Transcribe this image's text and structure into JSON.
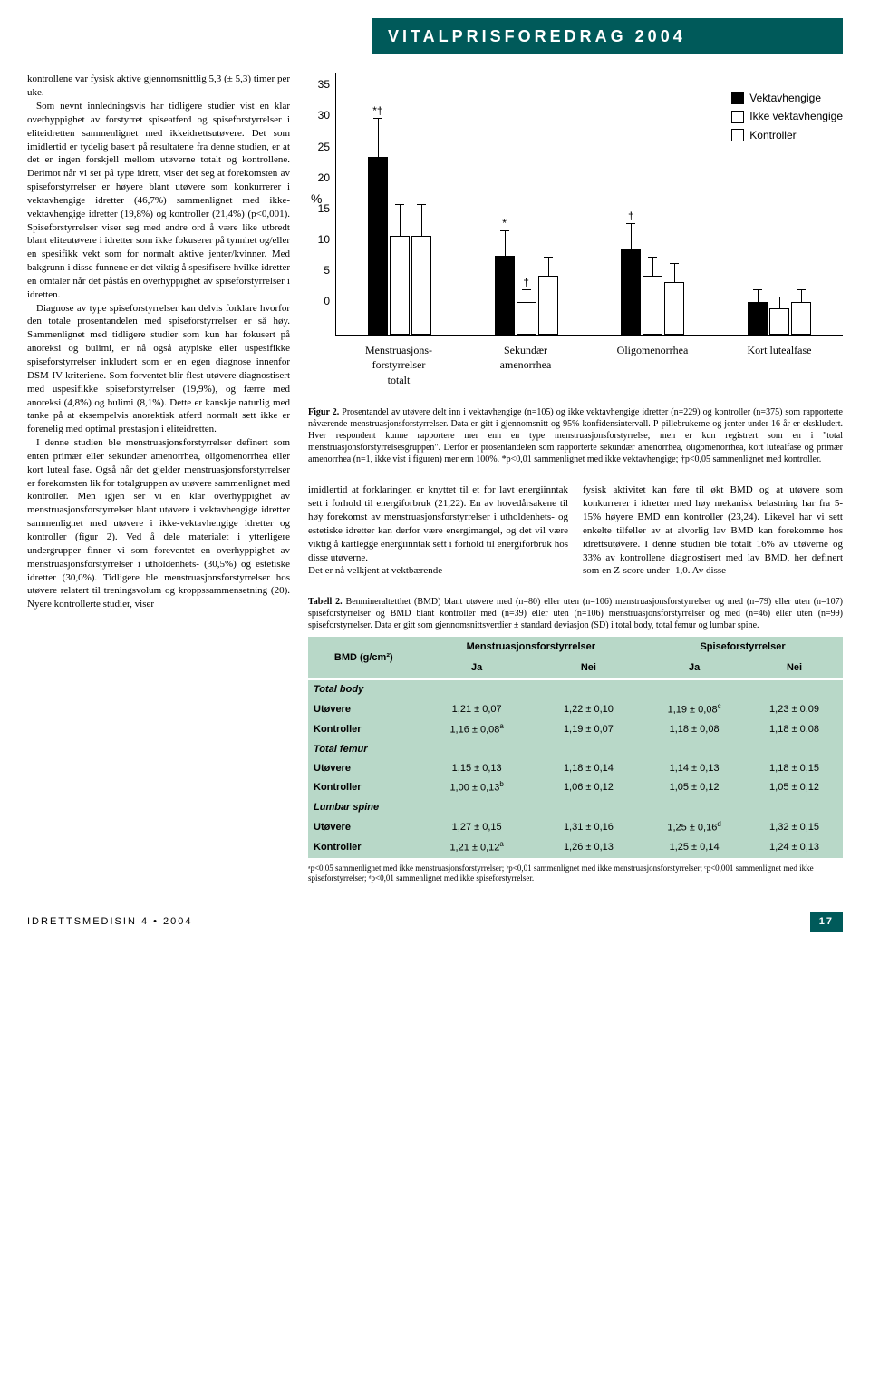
{
  "header": "VITALPRISFOREDRAG 2004",
  "left_column": {
    "p1": "kontrollene var fysisk aktive gjennomsnittlig 5,3 (± 5,3) timer per uke.",
    "p2": "Som nevnt innledningsvis har tidligere studier vist en klar overhyppighet av forstyrret spiseatferd og spiseforstyrrelser i eliteidretten sammenlignet med ikkeidrettsutøvere. Det som imidlertid er tydelig basert på resultatene fra denne studien, er at det er ingen forskjell mellom utøverne totalt og kontrollene. Derimot når vi ser på type idrett, viser det seg at forekomsten av spiseforstyrrelser er høyere blant utøvere som konkurrerer i vektavhengige idretter (46,7%) sammenlignet med ikke-vektavhengige idretter (19,8%) og kontroller (21,4%) (p<0,001). Spiseforstyrrelser viser seg med andre ord å være like utbredt blant eliteutøvere i idretter som ikke fokuserer på tynnhet og/eller en spesifikk vekt som for normalt aktive jenter/kvinner. Med bakgrunn i disse funnene er det viktig å spesifisere hvilke idretter en omtaler når det påstås en overhyppighet av spiseforstyrrelser i idretten.",
    "p3": "Diagnose av type spiseforstyrrelser kan delvis forklare hvorfor den totale prosentandelen med spiseforstyrrelser er så høy. Sammenlignet med tidligere studier som kun har fokusert på anoreksi og bulimi, er nå også atypiske eller uspesifikke spiseforstyrrelser inkludert som er en egen diagnose innenfor DSM-IV kriteriene. Som forventet blir flest utøvere diagnostisert med uspesifikke spiseforstyrrelser (19,9%), og færre med anoreksi (4,8%) og bulimi (8,1%). Dette er kanskje naturlig med tanke på at eksempelvis anorektisk atferd normalt sett ikke er forenelig med optimal prestasjon i eliteidretten.",
    "p4": "I denne studien ble menstruasjonsforstyrrelser definert som enten primær eller sekundær amenorrhea, oligomenorrhea eller kort luteal fase. Også når det gjelder menstruasjonsforstyrrelser er forekomsten lik for totalgruppen av utøvere sammenlignet med kontroller. Men igjen ser vi en klar overhyppighet av menstruasjonsforstyrrelser blant utøvere i vektavhengige idretter sammenlignet med utøvere i ikke-vektavhengige idretter og kontroller (figur 2). Ved å dele materialet i ytterligere undergrupper finner vi som foreventet en overhyppighet av menstruasjonsforstyrrelser i utholdenhets- (30,5%) og estetiske idretter (30,0%). Tidligere ble menstruasjonsforstyrrelser hos utøvere relatert til treningsvolum og kroppssammensetning (20). Nyere kontrollerte studier, viser"
  },
  "chart": {
    "type": "bar",
    "y_axis_label": "%",
    "ymax": 35,
    "ytick_step": 5,
    "yticks": [
      "35",
      "30",
      "25",
      "20",
      "15",
      "10",
      "5",
      "0"
    ],
    "categories": [
      "Menstruasjons-\nforstyrrelser\ntotalt",
      "Sekundær\namenorrhea",
      "Oligomenorrhea",
      "Kort lutealfase"
    ],
    "series": [
      {
        "name": "Vektavhengige",
        "color": "#000000"
      },
      {
        "name": "Ikke vektavhengige",
        "color": "#ffffff"
      },
      {
        "name": "Kontroller",
        "color": "#ffffff"
      }
    ],
    "groups": [
      {
        "cat": "Menstruasjons-forstyrrelser totalt",
        "bars": [
          {
            "v": 27,
            "err": 6,
            "sig": "*†",
            "c": "#000"
          },
          {
            "v": 15,
            "err": 5,
            "sig": "",
            "c": "#fff"
          },
          {
            "v": 15,
            "err": 5,
            "sig": "",
            "c": "#fff"
          }
        ]
      },
      {
        "cat": "Sekundær amenorrhea",
        "bars": [
          {
            "v": 12,
            "err": 4,
            "sig": "*",
            "c": "#000"
          },
          {
            "v": 5,
            "err": 2,
            "sig": "†",
            "c": "#fff"
          },
          {
            "v": 9,
            "err": 3,
            "sig": "",
            "c": "#fff"
          }
        ]
      },
      {
        "cat": "Oligomenorrhea",
        "bars": [
          {
            "v": 13,
            "err": 4,
            "sig": "†",
            "c": "#000"
          },
          {
            "v": 9,
            "err": 3,
            "sig": "",
            "c": "#fff"
          },
          {
            "v": 8,
            "err": 3,
            "sig": "",
            "c": "#fff"
          }
        ]
      },
      {
        "cat": "Kort lutealfase",
        "bars": [
          {
            "v": 5,
            "err": 2,
            "sig": "",
            "c": "#000"
          },
          {
            "v": 4,
            "err": 2,
            "sig": "",
            "c": "#fff"
          },
          {
            "v": 5,
            "err": 2,
            "sig": "",
            "c": "#fff"
          }
        ]
      }
    ]
  },
  "fig2_caption_label": "Figur 2.",
  "fig2_caption": " Prosentandel av utøvere delt inn i vektavhengige (n=105) og ikke vektavhengige idretter (n=229) og kontroller (n=375) som rapporterte nåværende menstruasjonsforstyrrelser. Data er gitt i gjennomsnitt og 95% konfidensintervall. P-pillebrukerne og jenter under 16 år er ekskludert. Hver respondent kunne rapportere mer enn en type menstruasjonsforstyrrelse, men er kun registrert som en i \"total menstruasjonsforstyrrelsesgruppen\". Derfor er prosentandelen som rapporterte sekundær amenorrhea, oligomenorrhea, kort lutealfase og primær amenorrhea (n=1, ikke vist i figuren) mer enn 100%. *p<0,01 sammenlignet med ikke vektavhengige; †p<0,05 sammenlignet med kontroller.",
  "body_right": {
    "col1": "imidlertid at forklaringen er knyttet til et for lavt energiinntak sett i forhold til energiforbruk (21,22). En av hovedårsakene til høy forekomst av menstruasjonsforstyrrelser i utholdenhets- og estetiske idretter kan derfor være energimangel, og det vil være viktig å kartlegge energiinntak sett i forhold til energiforbruk hos disse utøverne.\n   Det er nå velkjent at vektbærende",
    "col2": "fysisk aktivitet kan føre til økt BMD og at utøvere som konkurrerer i idretter med høy mekanisk belastning har fra 5-15% høyere BMD enn kontroller (23,24). Likevel har vi sett enkelte tilfeller av at alvorlig lav BMD kan forekomme hos idrettsutøvere. I denne studien ble totalt 16% av utøverne og 33% av kontrollene diagnostisert med lav BMD, her definert som en Z-score under -1,0. Av disse"
  },
  "table2_caption_label": "Tabell 2.",
  "table2_caption": " Benmineraltetthet (BMD) blant utøvere med (n=80) eller uten (n=106) menstruasjonsforstyrrelser og med (n=79) eller uten (n=107) spiseforstyrrelser og BMD blant kontroller med (n=39) eller uten (n=106) menstruasjonsforstyrrelser og med (n=46) eller uten (n=99) spiseforstyrrelser. Data er gitt som gjennomsnittsverdier ± standard deviasjon (SD) i total body, total femur og lumbar spine.",
  "table2": {
    "col_header_unit": "BMD (g/cm²)",
    "major_cols": [
      "Menstruasjonsforstyrrelser",
      "Spiseforstyrrelser"
    ],
    "sub_cols": [
      "Ja",
      "Nei",
      "Ja",
      "Nei"
    ],
    "sections": [
      {
        "label": "Total body",
        "rows": [
          {
            "name": "Utøvere",
            "vals": [
              "1,21 ± 0,07",
              "1,22 ± 0,10",
              "1,19 ± 0,08",
              "1,23 ± 0,09"
            ],
            "sup": [
              "",
              "",
              "c",
              ""
            ]
          },
          {
            "name": "Kontroller",
            "vals": [
              "1,16 ± 0,08",
              "1,19 ± 0,07",
              "1,18 ± 0,08",
              "1,18 ± 0,08"
            ],
            "sup": [
              "a",
              "",
              "",
              ""
            ]
          }
        ]
      },
      {
        "label": "Total femur",
        "rows": [
          {
            "name": "Utøvere",
            "vals": [
              "1,15 ± 0,13",
              "1,18 ± 0,14",
              "1,14 ± 0,13",
              "1,18 ± 0,15"
            ],
            "sup": [
              "",
              "",
              "",
              ""
            ]
          },
          {
            "name": "Kontroller",
            "vals": [
              "1,00 ± 0,13",
              "1,06 ± 0,12",
              "1,05 ± 0,12",
              "1,05 ± 0,12"
            ],
            "sup": [
              "b",
              "",
              "",
              ""
            ]
          }
        ]
      },
      {
        "label": "Lumbar spine",
        "rows": [
          {
            "name": "Utøvere",
            "vals": [
              "1,27 ± 0,15",
              "1,31 ± 0,16",
              "1,25 ± 0,16",
              "1,32 ± 0,15"
            ],
            "sup": [
              "",
              "",
              "d",
              ""
            ]
          },
          {
            "name": "Kontroller",
            "vals": [
              "1,21 ± 0,12",
              "1,26 ± 0,13",
              "1,25 ± 0,14",
              "1,24 ± 0,13"
            ],
            "sup": [
              "a",
              "",
              "",
              ""
            ]
          }
        ]
      }
    ],
    "footnote": "ᵃp<0,05 sammenlignet med ikke menstruasjonsforstyrrelser; ᵇp<0,01 sammenlignet med ikke menstruasjonsforstyrrelser; ᶜp<0,001 sammenlignet med ikke spiseforstyrrelser; ᵈp<0,01 sammenlignet med ikke spiseforstyrrelser."
  },
  "footer": {
    "left": "IDRETTSMEDISIN 4 • 2004",
    "page": "17"
  }
}
